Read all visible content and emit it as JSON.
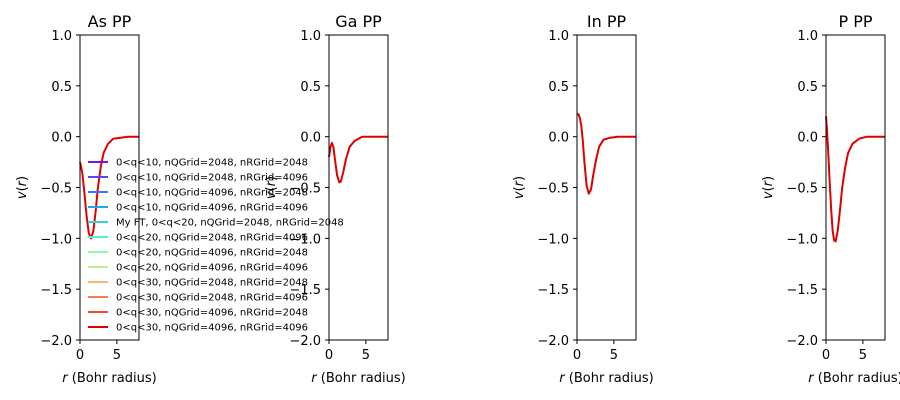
{
  "chart_data": [
    {
      "type": "line",
      "title": "As PP",
      "xlabel": "r (Bohr radius)",
      "ylabel": "v(r)",
      "xlim": [
        0,
        8
      ],
      "ylim": [
        -2.0,
        1.0
      ],
      "xticks": [
        0,
        5
      ],
      "yticks": [
        1.0,
        0.5,
        0.0,
        -0.5,
        -1.0,
        -1.5,
        -2.0
      ],
      "xtick_labels": [
        "0",
        "5"
      ],
      "ytick_labels": [
        "1.0",
        "0.5",
        "0.0",
        "−0.5",
        "−1.0",
        "−1.5",
        "−2.0"
      ],
      "curve": {
        "x": [
          0,
          0.3,
          0.6,
          0.9,
          1.2,
          1.5,
          1.8,
          2.1,
          2.4,
          2.8,
          3.2,
          3.8,
          4.5,
          5.5,
          6.5,
          8
        ],
        "y": [
          -0.25,
          -0.35,
          -0.55,
          -0.78,
          -0.95,
          -1.0,
          -0.93,
          -0.75,
          -0.52,
          -0.3,
          -0.16,
          -0.07,
          -0.02,
          -0.01,
          0.0,
          0.0
        ]
      },
      "legend_loc": "lower-left"
    },
    {
      "type": "line",
      "title": "Ga PP",
      "xlabel": "r (Bohr radius)",
      "ylabel": "v(r)",
      "xlim": [
        0,
        8
      ],
      "ylim": [
        -2.0,
        1.0
      ],
      "xticks": [
        0,
        5
      ],
      "yticks": [
        1.0,
        0.5,
        0.0,
        -0.5,
        -1.0,
        -1.5,
        -2.0
      ],
      "xtick_labels": [
        "0",
        "5"
      ],
      "ytick_labels": [
        "1.0",
        "0.5",
        "0.0",
        "−0.5",
        "−1.0",
        "−1.5",
        "−2.0"
      ],
      "curve": {
        "x": [
          0,
          0.2,
          0.4,
          0.6,
          0.8,
          1.1,
          1.4,
          1.6,
          1.9,
          2.3,
          2.8,
          3.5,
          4.5,
          5.5,
          6.5,
          8
        ],
        "y": [
          -0.2,
          -0.1,
          -0.06,
          -0.1,
          -0.22,
          -0.38,
          -0.45,
          -0.44,
          -0.36,
          -0.22,
          -0.1,
          -0.04,
          0.0,
          0.0,
          0.0,
          0.0
        ]
      }
    },
    {
      "type": "line",
      "title": "In PP",
      "xlabel": "r (Bohr radius)",
      "ylabel": "v(r)",
      "xlim": [
        0,
        8
      ],
      "ylim": [
        -2.0,
        1.0
      ],
      "xticks": [
        0,
        5
      ],
      "yticks": [
        1.0,
        0.5,
        0.0,
        -0.5,
        -1.0,
        -1.5,
        -2.0
      ],
      "xtick_labels": [
        "0",
        "5"
      ],
      "ytick_labels": [
        "1.0",
        "0.5",
        "0.0",
        "−0.5",
        "−1.0",
        "−1.5",
        "−2.0"
      ],
      "curve": {
        "x": [
          0,
          0.2,
          0.4,
          0.6,
          0.8,
          1.0,
          1.3,
          1.6,
          1.9,
          2.2,
          2.6,
          3.0,
          3.6,
          4.5,
          5.5,
          6.5,
          8
        ],
        "y": [
          0.22,
          0.22,
          0.18,
          0.1,
          -0.05,
          -0.25,
          -0.48,
          -0.56,
          -0.52,
          -0.38,
          -0.22,
          -0.1,
          -0.03,
          -0.01,
          0.0,
          0.0,
          0.0
        ]
      }
    },
    {
      "type": "line",
      "title": "P PP",
      "xlabel": "r (Bohr radius)",
      "ylabel": "v(r)",
      "xlim": [
        0,
        8
      ],
      "ylim": [
        -2.0,
        1.0
      ],
      "xticks": [
        0,
        5
      ],
      "yticks": [
        1.0,
        0.5,
        0.0,
        -0.5,
        -1.0,
        -1.5,
        -2.0
      ],
      "xtick_labels": [
        "0",
        "5"
      ],
      "ytick_labels": [
        "1.0",
        "0.5",
        "0.0",
        "−0.5",
        "−1.0",
        "−1.5",
        "−2.0"
      ],
      "curve": {
        "x": [
          0,
          0.15,
          0.3,
          0.5,
          0.7,
          0.9,
          1.1,
          1.3,
          1.6,
          1.9,
          2.2,
          2.6,
          3.0,
          3.6,
          4.5,
          5.5,
          6.5,
          8
        ],
        "y": [
          0.2,
          0.05,
          -0.15,
          -0.45,
          -0.72,
          -0.92,
          -1.02,
          -1.03,
          -0.92,
          -0.72,
          -0.5,
          -0.3,
          -0.16,
          -0.07,
          -0.02,
          0.0,
          0.0,
          0.0
        ]
      }
    }
  ],
  "legend": {
    "entries": [
      {
        "label": "0<q<10, nQGrid=2048, nRGrid=2048",
        "color": "#7a12e8"
      },
      {
        "label": "0<q<10, nQGrid=2048, nRGrid=4096",
        "color": "#5a45f5"
      },
      {
        "label": "0<q<10, nQGrid=4096, nRGrid=2048",
        "color": "#3a78f7"
      },
      {
        "label": "0<q<10, nQGrid=4096, nRGrid=4096",
        "color": "#1aa8ee"
      },
      {
        "label": "My FT, 0<q<20, nQGrid=2048, nRGrid=2048",
        "color": "#30d5dc"
      },
      {
        "label": "0<q<20, nQGrid=2048, nRGrid=4096",
        "color": "#56f0c6"
      },
      {
        "label": "0<q<20, nQGrid=4096, nRGrid=2048",
        "color": "#8afca9"
      },
      {
        "label": "0<q<20, nQGrid=4096, nRGrid=4096",
        "color": "#bdf58a"
      },
      {
        "label": "0<q<30, nQGrid=2048, nRGrid=2048",
        "color": "#fbb873"
      },
      {
        "label": "0<q<30, nQGrid=2048, nRGrid=4096",
        "color": "#fd7b45"
      },
      {
        "label": "0<q<30, nQGrid=4096, nRGrid=2048",
        "color": "#f44a28"
      },
      {
        "label": "0<q<30, nQGrid=4096, nRGrid=4096",
        "color": "#e00000"
      }
    ]
  },
  "colors": {
    "final_curve": "#e00000",
    "axes": "#000000"
  }
}
